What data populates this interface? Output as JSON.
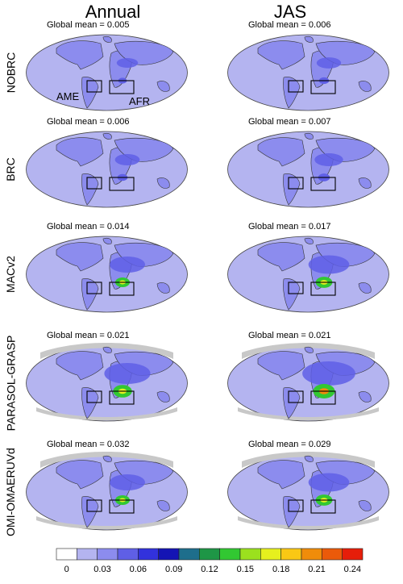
{
  "columns": [
    {
      "title": "Annual"
    },
    {
      "title": "JAS"
    }
  ],
  "rows": [
    {
      "label": "NOBRC",
      "annual_mean": "Global mean = 0.005",
      "jas_mean": "Global mean = 0.006"
    },
    {
      "label": "BRC",
      "annual_mean": "Global mean = 0.006",
      "jas_mean": "Global mean = 0.007"
    },
    {
      "label": "MACv2",
      "annual_mean": "Global mean = 0.014",
      "jas_mean": "Global mean = 0.017"
    },
    {
      "label": "PARASOL-GRASP",
      "annual_mean": "Global mean = 0.021",
      "jas_mean": "Global mean = 0.021"
    },
    {
      "label": "OMI-OMAERUVd",
      "annual_mean": "Global mean = 0.032",
      "jas_mean": "Global mean = 0.029"
    }
  ],
  "regions": {
    "ame": "AME",
    "afr": "AFR"
  },
  "colorbar": {
    "ticks": [
      "0",
      "0.03",
      "0.06",
      "0.09",
      "0.12",
      "0.15",
      "0.18",
      "0.21",
      "0.24"
    ],
    "colors": [
      "#ffffff",
      "#b4b4f0",
      "#8c8cee",
      "#5f5fe6",
      "#3232dc",
      "#1414b4",
      "#1e6e8c",
      "#1e9646",
      "#32c832",
      "#9be11e",
      "#e6f01e",
      "#fac814",
      "#f08c0a",
      "#eb5a0a",
      "#e61e0a"
    ]
  },
  "colors": {
    "background": "#b4b4f0",
    "land": "#8c8cee",
    "hotspot": "#5f5fe6",
    "no_data": "#c8c8c8",
    "region_box": "#000000"
  }
}
